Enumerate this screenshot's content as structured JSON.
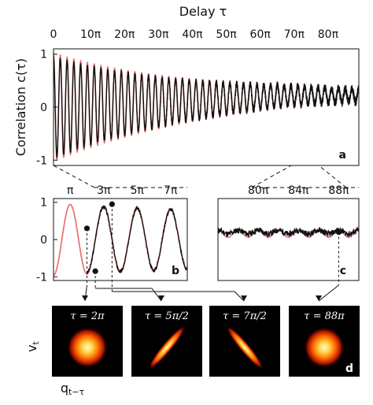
{
  "figure": {
    "top_axis_title": "Delay τ",
    "ylabel": "Correlation c(τ)",
    "panels": {
      "a": "a",
      "b": "b",
      "c": "c",
      "d": "d"
    },
    "phase_axis": {
      "x": "q",
      "x_sub": "t−τ",
      "y": "v",
      "y_sub": "t"
    }
  },
  "chart_data": [
    {
      "type": "line",
      "panel": "a",
      "title": "",
      "xlabel": "Delay τ",
      "ylabel": "Correlation c(τ)",
      "x_unit": "π",
      "xlim": [
        0,
        90
      ],
      "ylim": [
        -1.1,
        1.1
      ],
      "xticks": [
        "0",
        "10π",
        "20π",
        "30π",
        "40π",
        "50π",
        "60π",
        "70π",
        "80π"
      ],
      "yticks": [
        "1",
        "0",
        "-1"
      ],
      "series": [
        {
          "color": "#e8706e",
          "role": "theory",
          "oscillation_period": 2,
          "envelope_start": 1.0,
          "envelope_end": 0.12,
          "offset_end": 0.22
        },
        {
          "color": "#111111",
          "role": "experiment",
          "oscillation_period": 2,
          "envelope_start": 0.95,
          "envelope_end": 0.1,
          "offset_end": 0.22
        }
      ]
    },
    {
      "type": "line",
      "panel": "b",
      "xlim": [
        0,
        8
      ],
      "ylim": [
        -1.1,
        1.1
      ],
      "xticks": [
        "π",
        "3π",
        "5π",
        "7π"
      ],
      "yticks": [
        "1",
        "0",
        "-1"
      ],
      "marked_points": [
        {
          "x": 2.0,
          "y": 0.3
        },
        {
          "x": 2.5,
          "y": -0.85
        },
        {
          "x": 3.5,
          "y": 0.95
        }
      ]
    },
    {
      "type": "line",
      "panel": "c",
      "xlim": [
        76,
        90
      ],
      "ylim": [
        -1.1,
        1.1
      ],
      "xticks": [
        "80π",
        "84π",
        "88π"
      ],
      "marked_points": [
        {
          "x": 88,
          "y": 0.2
        }
      ]
    }
  ],
  "phase_portraits": [
    {
      "label": "τ = 2π",
      "shape": "circle"
    },
    {
      "label": "τ = 5π/2",
      "shape": "ellipse-rising"
    },
    {
      "label": "τ = 7π/2",
      "shape": "ellipse-falling"
    },
    {
      "label": "τ = 88π",
      "shape": "circle"
    }
  ],
  "colors": {
    "theory": "#e8706e",
    "experiment": "#111111",
    "image_bg": "#000000"
  }
}
